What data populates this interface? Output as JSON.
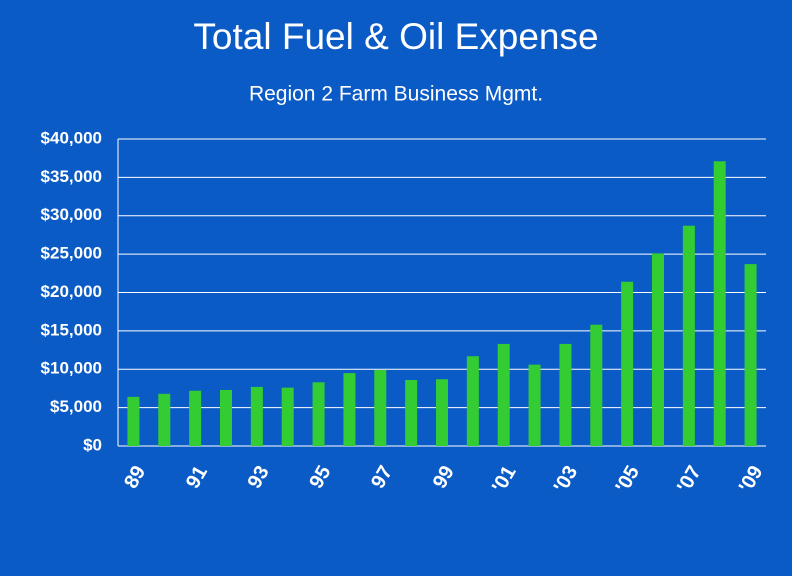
{
  "chart_data": {
    "type": "bar",
    "title": "Total Fuel & Oil Expense",
    "subtitle": "Region 2 Farm Business Mgmt.",
    "categories": [
      "89",
      null,
      "91",
      null,
      "93",
      null,
      "95",
      null,
      "97",
      null,
      "99",
      null,
      "'01",
      null,
      "'03",
      null,
      "'05",
      null,
      "'07",
      null,
      "'09"
    ],
    "values": [
      6400,
      6800,
      7200,
      7300,
      7700,
      7600,
      8300,
      9500,
      9900,
      8600,
      8700,
      11700,
      13300,
      10600,
      13300,
      15800,
      21400,
      25100,
      28700,
      37100,
      23700
    ],
    "color": "#33cc33",
    "ylim": [
      0,
      40000
    ],
    "yticks": [
      {
        "value": 0,
        "label": "$0"
      },
      {
        "value": 5000,
        "label": "$5,000"
      },
      {
        "value": 10000,
        "label": "$10,000"
      },
      {
        "value": 15000,
        "label": "$15,000"
      },
      {
        "value": 20000,
        "label": "$20,000"
      },
      {
        "value": 25000,
        "label": "$25,000"
      },
      {
        "value": 30000,
        "label": "$30,000"
      },
      {
        "value": 35000,
        "label": "$35,000"
      },
      {
        "value": 40000,
        "label": "$40,000"
      }
    ],
    "grid": true
  }
}
